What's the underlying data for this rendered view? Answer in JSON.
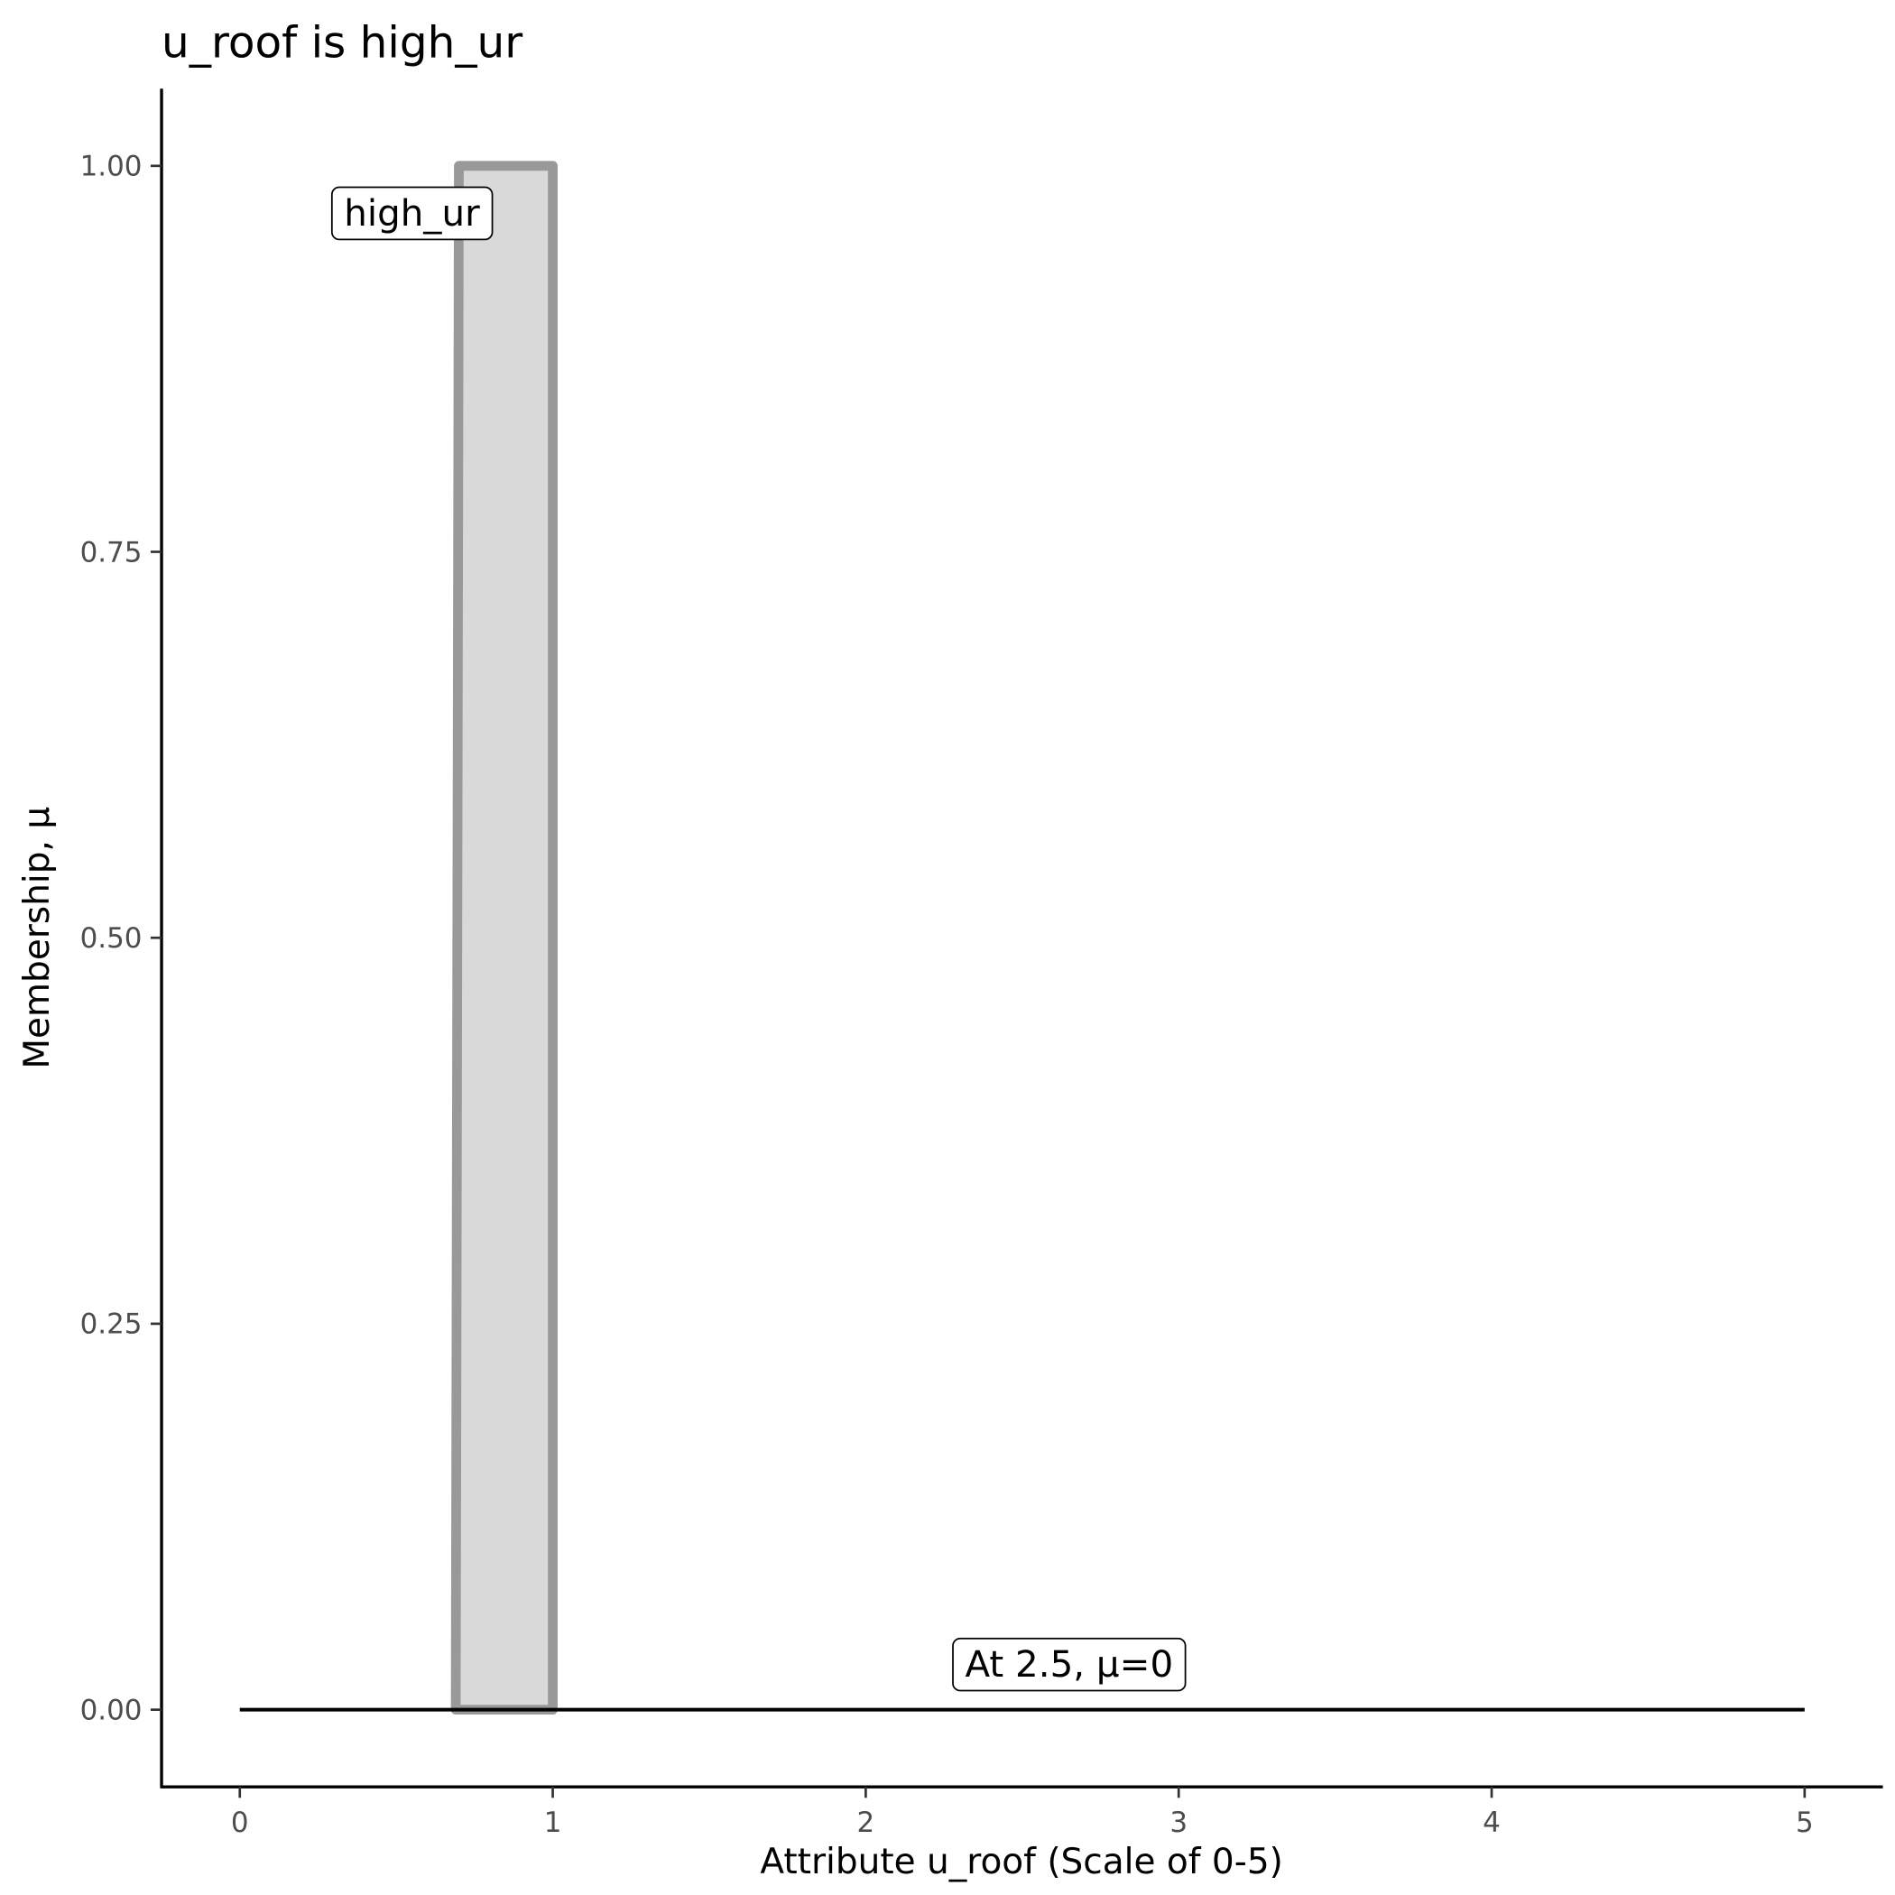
{
  "chart_data": {
    "type": "area",
    "title": "u_roof is high_ur",
    "xlabel": "Attribute u_roof (Scale of 0-5)",
    "ylabel": "Membership, μ",
    "xlim": [
      -0.25,
      5.25
    ],
    "ylim": [
      -0.05,
      1.05
    ],
    "xticks": [
      0,
      1,
      2,
      3,
      4,
      5
    ],
    "xtick_labels": [
      "0",
      "1",
      "2",
      "3",
      "4",
      "5"
    ],
    "yticks": [
      0,
      0.25,
      0.5,
      0.75,
      1
    ],
    "ytick_labels": [
      "0.00",
      "0.25",
      "0.50",
      "0.75",
      "1.00"
    ],
    "grid": false,
    "series": [
      {
        "points": [
          [
            0.69,
            0
          ],
          [
            0.7,
            1
          ],
          [
            1.0,
            1
          ],
          [
            1.0,
            0
          ]
        ],
        "fill": "#d9d9d9",
        "stroke": "#999999"
      },
      {
        "points": [
          [
            0,
            0
          ],
          [
            5,
            0
          ]
        ],
        "stroke": "#000000"
      }
    ],
    "annotations": [
      {
        "text": "high_ur",
        "x": 0.55,
        "y": 0.97
      },
      {
        "text": "At 2.5, μ=0",
        "x": 2.65,
        "y": 0.03
      }
    ]
  }
}
